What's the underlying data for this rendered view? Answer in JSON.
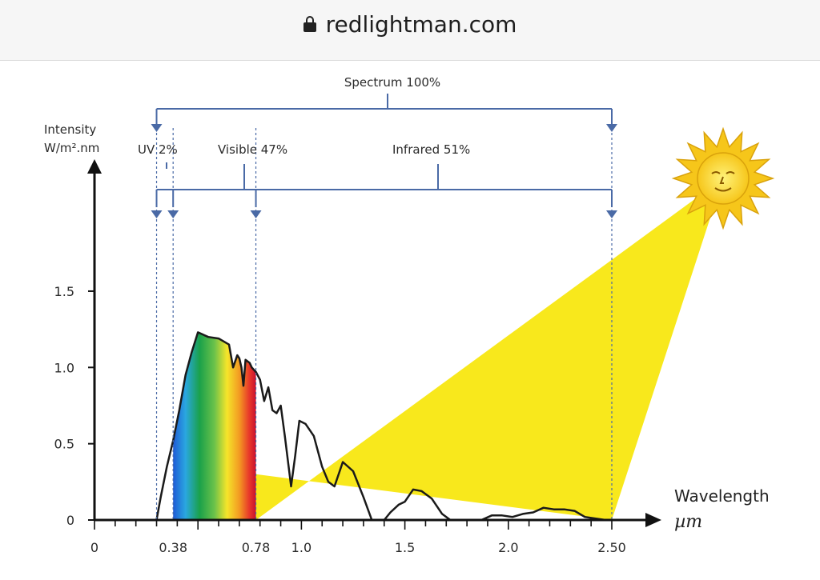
{
  "browser": {
    "domain": "redlightman.com",
    "lock_icon": "lock-icon"
  },
  "colors": {
    "bracket": "#4a6aa6",
    "sun": "#f8e81c",
    "spectrum_line": "#1a1a1a"
  },
  "chart_data": {
    "type": "line",
    "ylabel_line1": "Intensity",
    "ylabel_line2": "W/m².nm",
    "xlabel_line1": "Wavelength",
    "xlabel_line2": "µm",
    "ylim": [
      0,
      1.5
    ],
    "xlim": [
      0,
      2.5
    ],
    "y_ticks": [
      {
        "value": 0,
        "label": "0"
      },
      {
        "value": 0.5,
        "label": "0.5"
      },
      {
        "value": 1.0,
        "label": "1.0"
      },
      {
        "value": 1.5,
        "label": "1.5"
      }
    ],
    "x_ticks": [
      {
        "value": 0,
        "label": "0"
      },
      {
        "value": 0.38,
        "label": "0.38"
      },
      {
        "value": 0.78,
        "label": "0.78"
      },
      {
        "value": 1.0,
        "label": "1.0"
      },
      {
        "value": 1.5,
        "label": "1.5"
      },
      {
        "value": 2.0,
        "label": "2.0"
      },
      {
        "value": 2.5,
        "label": "2.50"
      }
    ],
    "regions": {
      "spectrum": "Spectrum 100%",
      "uv": "UV 2%",
      "visible": "Visible 47%",
      "infrared": "Infrared 51%"
    },
    "region_bounds": {
      "uv_start": 0.3,
      "uv_end": 0.38,
      "visible_end": 0.78,
      "ir_end": 2.5
    },
    "series": [
      {
        "x": [
          0.3,
          0.32,
          0.35,
          0.38,
          0.41,
          0.44,
          0.47,
          0.5,
          0.55,
          0.6,
          0.65,
          0.67,
          0.69,
          0.7,
          0.71,
          0.72,
          0.73,
          0.75,
          0.76,
          0.78,
          0.8,
          0.82,
          0.84,
          0.86,
          0.88,
          0.9,
          0.92,
          0.95,
          0.97,
          0.99,
          1.02,
          1.06,
          1.1,
          1.13,
          1.16,
          1.2,
          1.25,
          1.3,
          1.34,
          1.37,
          1.4,
          1.43,
          1.47,
          1.5,
          1.54,
          1.58,
          1.63,
          1.68,
          1.72,
          1.77,
          1.82,
          1.87,
          1.92,
          1.97,
          2.02,
          2.07,
          2.12,
          2.17,
          2.22,
          2.27,
          2.32,
          2.37,
          2.42,
          2.47,
          2.5
        ],
        "y": [
          0.0,
          0.15,
          0.35,
          0.52,
          0.72,
          0.95,
          1.1,
          1.23,
          1.2,
          1.19,
          1.15,
          1.0,
          1.08,
          1.06,
          1.0,
          0.88,
          1.05,
          1.03,
          1.0,
          0.97,
          0.92,
          0.78,
          0.87,
          0.72,
          0.7,
          0.75,
          0.55,
          0.22,
          0.42,
          0.65,
          0.63,
          0.55,
          0.35,
          0.25,
          0.22,
          0.38,
          0.32,
          0.15,
          0.0,
          0.0,
          0.0,
          0.05,
          0.1,
          0.12,
          0.2,
          0.19,
          0.14,
          0.04,
          0.0,
          0.0,
          0.0,
          0.0,
          0.03,
          0.03,
          0.02,
          0.04,
          0.05,
          0.08,
          0.07,
          0.07,
          0.06,
          0.02,
          0.01,
          0.0,
          0.0
        ]
      }
    ]
  }
}
